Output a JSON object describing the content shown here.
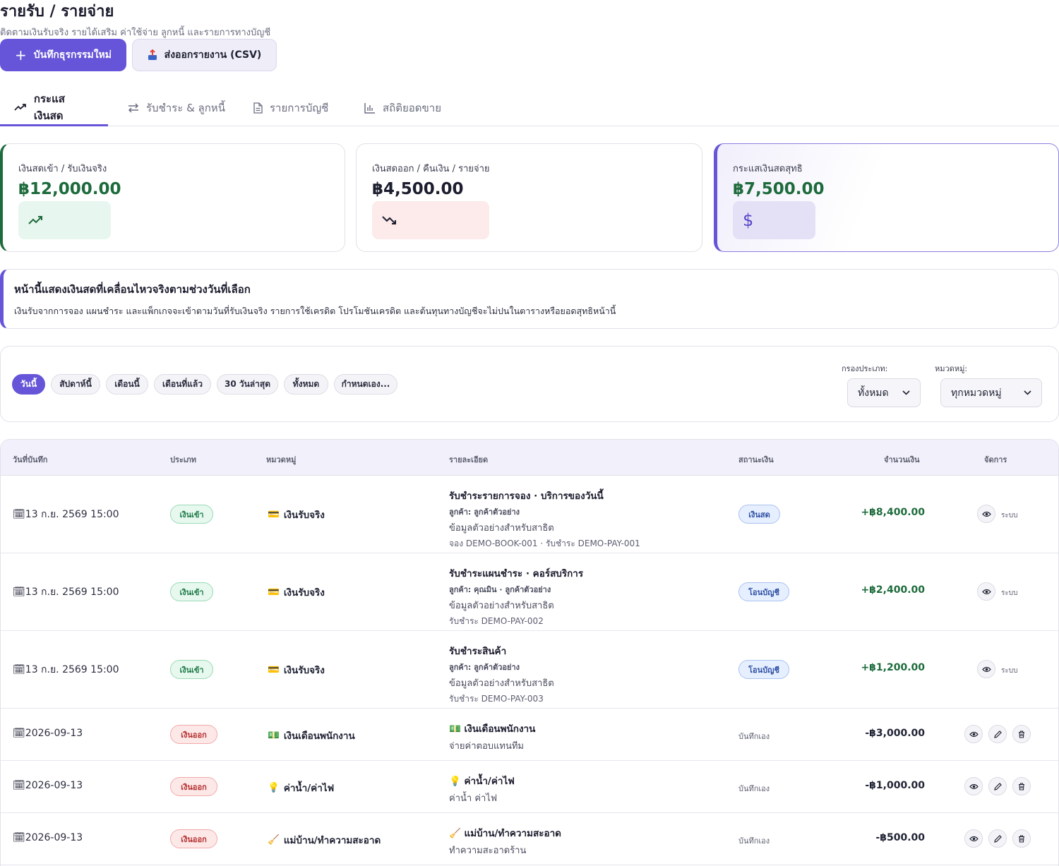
{
  "header": {
    "title": "รายรับ / รายจ่าย",
    "subtitle": "ติดตามเงินรับจริง รายได้เสริม ค่าใช้จ่าย ลูกหนี้ และรายการทางบัญชี"
  },
  "actions": {
    "new_transaction": "บันทึกธุรกรรมใหม่",
    "export_csv": "ส่งออกรายงาน (CSV)"
  },
  "tabs": [
    {
      "label": "กระแสเงินสด",
      "icon": "trending-up-icon",
      "active": true
    },
    {
      "label": "รับชำระ & ลูกหนี้",
      "icon": "swap-icon",
      "active": false
    },
    {
      "label": "รายการบัญชี",
      "icon": "document-icon",
      "active": false
    },
    {
      "label": "สถิติยอดขาย",
      "icon": "bar-chart-icon",
      "active": false
    }
  ],
  "kpis": {
    "cash_in": {
      "label": "เงินสดเข้า / รับเงินจริง",
      "value": "฿12,000.00",
      "color": "#1d6b3c"
    },
    "cash_out": {
      "label": "เงินสดออก / คืนเงิน / รายจ่าย",
      "value": "฿4,500.00",
      "color": "#1c1d2e"
    },
    "net": {
      "label": "กระแสเงินสดสุทธิ",
      "value": "฿7,500.00",
      "color": "#1d6b3c"
    }
  },
  "notice": {
    "title": "หน้านี้แสดงเงินสดที่เคลื่อนไหวจริงตามช่วงวันที่เลือก",
    "text": "เงินรับจากการจอง แผนชำระ และแพ็กเกจจะเข้าตามวันที่รับเงินจริง รายการใช้เครดิต โปรโมชันเครดิต และต้นทุนทางบัญชีจะไม่ปนในตารางหรือยอดสุทธิหน้านี้"
  },
  "filters": {
    "ranges": [
      "วันนี้",
      "สัปดาห์นี้",
      "เดือนนี้",
      "เดือนที่แล้ว",
      "30 วันล่าสุด",
      "ทั้งหมด",
      "กำหนดเอง..."
    ],
    "active_range": 0,
    "type_label": "กรองประเภท:",
    "type_value": "ทั้งหมด",
    "category_label": "หมวดหมู่:",
    "category_value": "ทุกหมวดหมู่"
  },
  "table": {
    "columns": [
      "วันที่บันทึก",
      "ประเภท",
      "หมวดหมู่",
      "รายละเอียด",
      "สถานะเงิน",
      "จำนวนเงิน",
      "จัดการ"
    ],
    "rows": [
      {
        "date": "13 ก.ย. 2569 15:00",
        "type": "เงินเข้า",
        "category_icon": "💳",
        "category": "เงินรับจริง",
        "title": "รับชำระรายการจอง · บริการของวันนี้",
        "customer": "ลูกค้า: ลูกค้าตัวอย่าง",
        "note": "ข้อมูลตัวอย่างสำหรับสาธิต",
        "ref": "จอง DEMO-BOOK-001 · รับชำระ DEMO-PAY-001",
        "status": "เงินสด",
        "amount": "+฿8,400.00",
        "system": "ระบบ"
      },
      {
        "date": "13 ก.ย. 2569 15:00",
        "type": "เงินเข้า",
        "category_icon": "💳",
        "category": "เงินรับจริง",
        "title": "รับชำระแผนชำระ · คอร์สบริการ",
        "customer": "ลูกค้า: คุณมิน · ลูกค้าตัวอย่าง",
        "note": "ข้อมูลตัวอย่างสำหรับสาธิต",
        "ref": "รับชำระ DEMO-PAY-002",
        "status": "โอนบัญชี",
        "amount": "+฿2,400.00",
        "system": "ระบบ"
      },
      {
        "date": "13 ก.ย. 2569 15:00",
        "type": "เงินเข้า",
        "category_icon": "💳",
        "category": "เงินรับจริง",
        "title": "รับชำระสินค้า",
        "customer": "ลูกค้า: ลูกค้าตัวอย่าง",
        "note": "ข้อมูลตัวอย่างสำหรับสาธิต",
        "ref": "รับชำระ DEMO-PAY-003",
        "status": "โอนบัญชี",
        "amount": "+฿1,200.00",
        "system": "ระบบ"
      },
      {
        "date": "2026-09-13",
        "type": "เงินออก",
        "category_icon": "💵",
        "category": "เงินเดือนพนักงาน",
        "title": "💵 เงินเดือนพนักงาน",
        "note": "จ่ายค่าตอบแทนทีม",
        "status_plain": "บันทึกเอง",
        "amount": "-฿3,000.00"
      },
      {
        "date": "2026-09-13",
        "type": "เงินออก",
        "category_icon": "💡",
        "category": "ค่าน้ำ/ค่าไฟ",
        "title": "💡 ค่าน้ำ/ค่าไฟ",
        "note": "ค่าน้ำ ค่าไฟ",
        "status_plain": "บันทึกเอง",
        "amount": "-฿1,000.00"
      },
      {
        "date": "2026-09-13",
        "type": "เงินออก",
        "category_icon": "🧹",
        "category": "แม่บ้าน/ทำความสะอาด",
        "title": "🧹 แม่บ้าน/ทำความสะอาด",
        "note": "ทำความสะอาดร้าน",
        "status_plain": "บันทึกเอง",
        "amount": "-฿500.00"
      }
    ]
  }
}
